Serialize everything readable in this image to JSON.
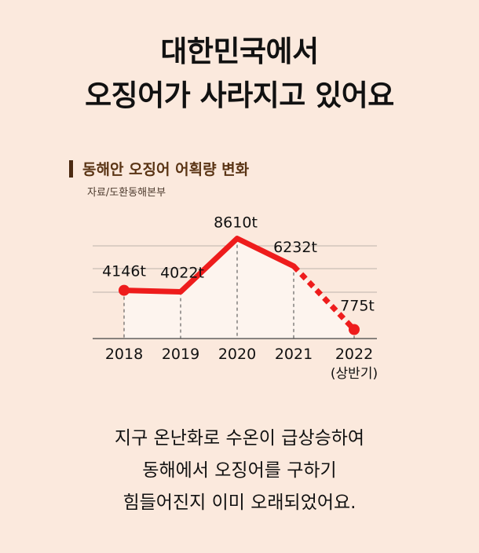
{
  "headline": {
    "line1": "대한민국에서",
    "line2": "오징어가 사라지고 있어요"
  },
  "chart_header": {
    "title": "동해안 오징어 어획량 변화",
    "source": "자료/도환동해본부"
  },
  "chart_data": {
    "type": "line",
    "categories": [
      "2018",
      "2019",
      "2020",
      "2021",
      "2022"
    ],
    "category_sublabels": [
      "",
      "",
      "",
      "",
      "(상반기)"
    ],
    "values": [
      4146,
      4022,
      8610,
      6232,
      775
    ],
    "data_labels": [
      "4146t",
      "4022t",
      "8610t",
      "6232t",
      "775t"
    ],
    "unit": "t",
    "ylim": [
      0,
      10000
    ],
    "grid": true,
    "dashed_segment_from_index": 3,
    "colors": {
      "line": "#ee1c1c",
      "fill": "#fdf4ee",
      "grid": "#9a9a9a"
    }
  },
  "description": {
    "line1": "지구 온난화로 수온이 급상승하여",
    "line2": "동해에서 오징어를 구하기",
    "line3": "힘들어진지 이미 오래되었어요."
  }
}
